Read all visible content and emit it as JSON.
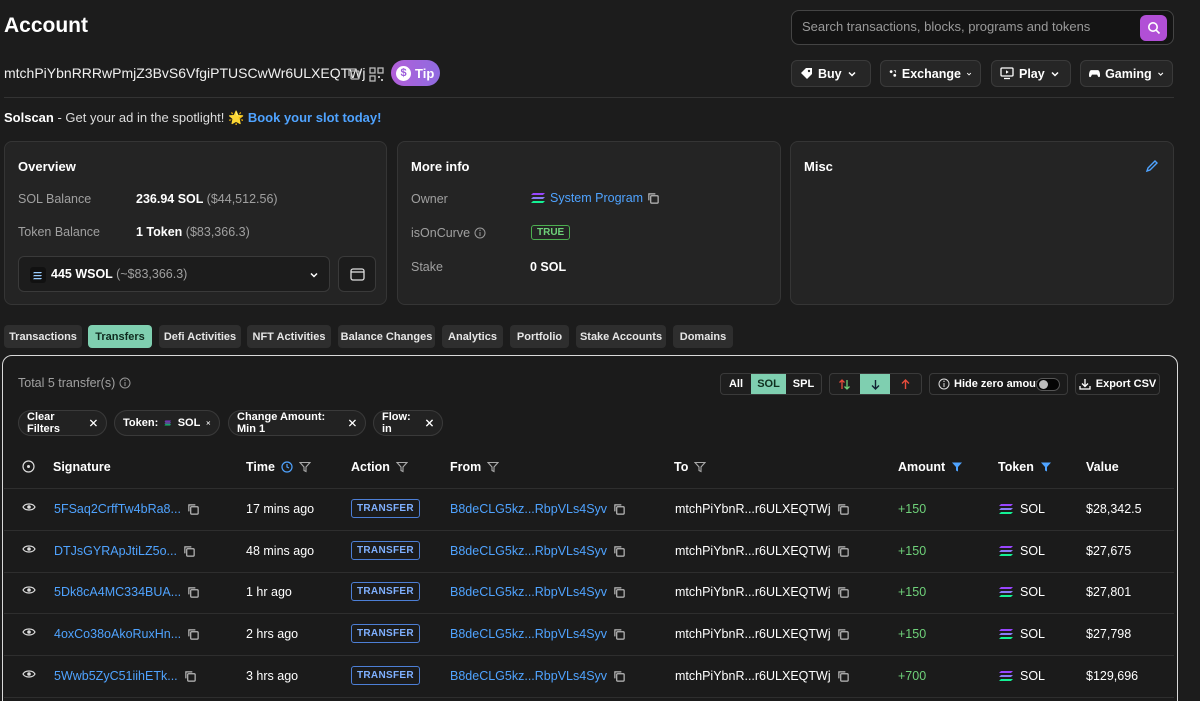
{
  "page": {
    "title": "Account"
  },
  "search": {
    "placeholder": "Search transactions, blocks, programs and tokens"
  },
  "account": {
    "address": "mtchPiYbnRRRwPmjZ3BvS6VfgiPTUSCwWr6ULXEQTWj"
  },
  "tip": {
    "label": "Tip"
  },
  "topnav": {
    "buy": "Buy",
    "exchange": "Exchange",
    "play": "Play",
    "gaming": "Gaming"
  },
  "ad": {
    "brand": "Solscan",
    "text": " - Get your ad in the spotlight! ",
    "emoji": "🌟",
    "link": "Book your slot today!"
  },
  "overview": {
    "title": "Overview",
    "sol_balance_label": "SOL Balance",
    "sol_balance_value": "236.94 SOL",
    "sol_balance_usd": "($44,512.56)",
    "token_balance_label": "Token Balance",
    "token_balance_value": "1 Token",
    "token_balance_usd": "($83,366.3)",
    "token_select_value": "445 WSOL",
    "token_select_usd": "(~$83,366.3)"
  },
  "more_info": {
    "title": "More info",
    "owner_label": "Owner",
    "owner_value": "System Program",
    "curve_label": "isOnCurve",
    "curve_value": "TRUE",
    "stake_label": "Stake",
    "stake_value": "0 SOL"
  },
  "misc": {
    "title": "Misc"
  },
  "tabs": [
    "Transactions",
    "Transfers",
    "Defi Activities",
    "NFT Activities",
    "Balance Changes",
    "Analytics",
    "Portfolio",
    "Stake Accounts",
    "Domains"
  ],
  "active_tab": "Transfers",
  "transfers": {
    "total": "Total 5 transfer(s)",
    "filter_all": "All",
    "filter_sol": "SOL",
    "filter_spl": "SPL",
    "hide_zero": "Hide zero amount",
    "export": "Export CSV",
    "chips": {
      "clear": "Clear Filters",
      "token": "Token:",
      "token_value": "SOL",
      "change": "Change Amount: Min 1",
      "flow": "Flow: in"
    },
    "columns": {
      "signature": "Signature",
      "time": "Time",
      "action": "Action",
      "from": "From",
      "to": "To",
      "amount": "Amount",
      "token": "Token",
      "value": "Value"
    },
    "rows": [
      {
        "signature": "5FSaq2CrffTw4bRa8...",
        "time": "17 mins ago",
        "action": "TRANSFER",
        "from": "B8deCLG5kz...RbpVLs4Syv",
        "to": "mtchPiYbnR...r6ULXEQTWj",
        "amount": "+150",
        "token": "SOL",
        "value": "$28,342.5"
      },
      {
        "signature": "DTJsGYRApJtiLZ5o...",
        "time": "48 mins ago",
        "action": "TRANSFER",
        "from": "B8deCLG5kz...RbpVLs4Syv",
        "to": "mtchPiYbnR...r6ULXEQTWj",
        "amount": "+150",
        "token": "SOL",
        "value": "$27,675"
      },
      {
        "signature": "5Dk8cA4MC334BUA...",
        "time": "1 hr ago",
        "action": "TRANSFER",
        "from": "B8deCLG5kz...RbpVLs4Syv",
        "to": "mtchPiYbnR...r6ULXEQTWj",
        "amount": "+150",
        "token": "SOL",
        "value": "$27,801"
      },
      {
        "signature": "4oxCo38oAkoRuxHn...",
        "time": "2 hrs ago",
        "action": "TRANSFER",
        "from": "B8deCLG5kz...RbpVLs4Syv",
        "to": "mtchPiYbnR...r6ULXEQTWj",
        "amount": "+150",
        "token": "SOL",
        "value": "$27,798"
      },
      {
        "signature": "5Wwb5ZyC51iihETk...",
        "time": "3 hrs ago",
        "action": "TRANSFER",
        "from": "B8deCLG5kz...RbpVLs4Syv",
        "to": "mtchPiYbnR...r6ULXEQTWj",
        "amount": "+700",
        "token": "SOL",
        "value": "$129,696"
      }
    ]
  },
  "colors": {
    "accent": "#7fcfb0",
    "link": "#4fa3ff",
    "positive": "#6fd27a",
    "tip": "#b25fd9"
  }
}
